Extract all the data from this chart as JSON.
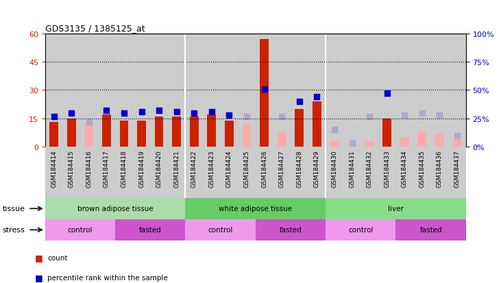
{
  "title": "GDS3135 / 1385125_at",
  "samples": [
    "GSM184414",
    "GSM184415",
    "GSM184416",
    "GSM184417",
    "GSM184418",
    "GSM184419",
    "GSM184420",
    "GSM184421",
    "GSM184422",
    "GSM184423",
    "GSM184424",
    "GSM184425",
    "GSM184426",
    "GSM184427",
    "GSM184428",
    "GSM184429",
    "GSM184430",
    "GSM184431",
    "GSM184432",
    "GSM184433",
    "GSM184434",
    "GSM184435",
    "GSM184436",
    "GSM184437"
  ],
  "count_values": [
    13,
    15,
    null,
    17,
    14,
    14,
    16,
    16,
    16,
    17,
    14,
    null,
    57,
    null,
    20,
    24,
    null,
    null,
    null,
    15,
    null,
    null,
    null,
    null
  ],
  "rank_values": [
    27,
    30,
    null,
    32,
    30,
    31,
    32,
    31,
    30,
    31,
    28,
    null,
    51,
    null,
    40,
    44,
    null,
    null,
    null,
    47,
    null,
    null,
    null,
    null
  ],
  "absent_count_values": [
    null,
    null,
    12,
    null,
    null,
    null,
    null,
    null,
    null,
    null,
    null,
    12,
    null,
    8,
    null,
    null,
    3,
    2,
    3,
    null,
    5,
    8,
    7,
    4
  ],
  "absent_rank_values": [
    null,
    null,
    22,
    null,
    null,
    null,
    null,
    null,
    null,
    null,
    null,
    27,
    null,
    27,
    null,
    null,
    15,
    3,
    27,
    null,
    28,
    30,
    28,
    10
  ],
  "ylim_left": [
    0,
    60
  ],
  "ylim_right": [
    0,
    100
  ],
  "yticks_left": [
    0,
    15,
    30,
    45,
    60
  ],
  "yticks_right": [
    0,
    25,
    50,
    75,
    100
  ],
  "ytick_labels_left": [
    "0",
    "15",
    "30",
    "45",
    "60"
  ],
  "ytick_labels_right": [
    "0%",
    "25%",
    "50%",
    "75%",
    "100%"
  ],
  "hlines": [
    15,
    30,
    45
  ],
  "color_count": "#cc2200",
  "color_rank": "#0000cc",
  "color_absent_count": "#ffaaaa",
  "color_absent_rank": "#aaaacc",
  "tissue_groups": [
    {
      "label": "brown adipose tissue",
      "start": 0,
      "end": 8,
      "color": "#aaddaa"
    },
    {
      "label": "white adipose tissue",
      "start": 8,
      "end": 16,
      "color": "#66cc66"
    },
    {
      "label": "liver",
      "start": 16,
      "end": 24,
      "color": "#88dd88"
    }
  ],
  "stress_groups": [
    {
      "label": "control",
      "start": 0,
      "end": 4,
      "color": "#ee99ee"
    },
    {
      "label": "fasted",
      "start": 4,
      "end": 8,
      "color": "#cc55cc"
    },
    {
      "label": "control",
      "start": 8,
      "end": 12,
      "color": "#ee99ee"
    },
    {
      "label": "fasted",
      "start": 12,
      "end": 16,
      "color": "#cc55cc"
    },
    {
      "label": "control",
      "start": 16,
      "end": 20,
      "color": "#ee99ee"
    },
    {
      "label": "fasted",
      "start": 20,
      "end": 24,
      "color": "#cc55cc"
    }
  ],
  "marker_size": 40,
  "col_bg_color": "#cccccc",
  "plot_bg": "#ffffff",
  "fig_bg": "#ffffff"
}
